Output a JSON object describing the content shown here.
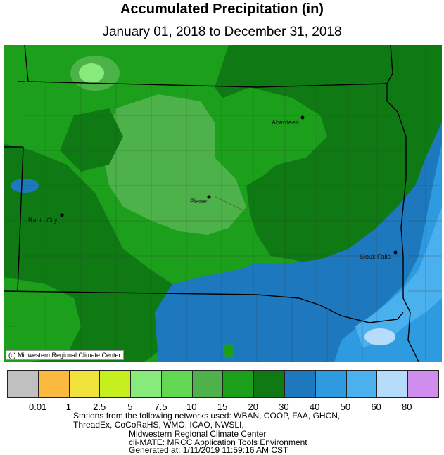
{
  "title": "Accumulated Precipitation (in)",
  "subtitle": "January 01, 2018 to December 31, 2018",
  "copyright": "(c) Midwestern Regional Climate Center",
  "cities": [
    {
      "name": "Aberdeen"
    },
    {
      "name": "Pierre"
    },
    {
      "name": "Rapid City"
    },
    {
      "name": "Sioux Falls"
    }
  ],
  "legend": {
    "colors": [
      "#c0c0c0",
      "#fbb93f",
      "#f2e23c",
      "#c5f01e",
      "#86eb7a",
      "#62d852",
      "#4db24a",
      "#1ca01b",
      "#0f7a14",
      "#1e78be",
      "#2e9be0",
      "#4ab0ee",
      "#b5dcfb",
      "#cf8eee"
    ],
    "ticks": [
      "0.01",
      "1",
      "2.5",
      "5",
      "7.5",
      "10",
      "15",
      "20",
      "30",
      "40",
      "50",
      "60",
      "80"
    ]
  },
  "footer": {
    "lines": [
      "Stations from the following networks used: WBAN, COOP, FAA, GHCN,",
      "ThreadEx, CoCoRaHS, WMO, ICAO, NWSLI,",
      "Midwestern Regional Climate Center",
      "cli-MATE: MRCC Application Tools Environment",
      "Generated at: 1/11/2019 11:59:16 AM CST"
    ]
  }
}
